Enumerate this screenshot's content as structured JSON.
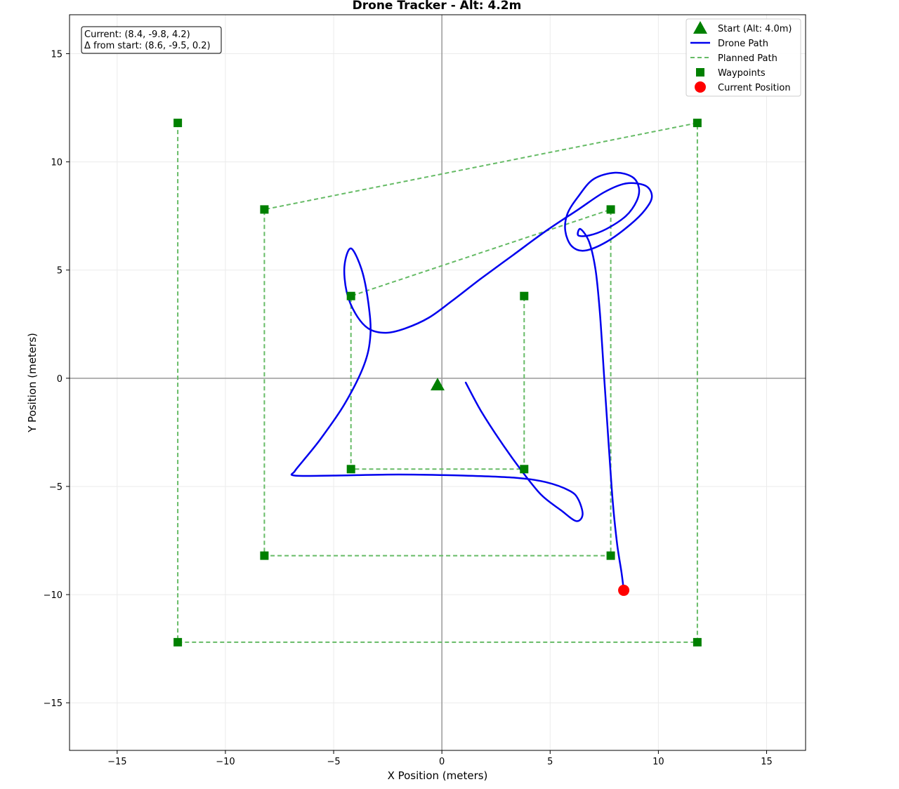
{
  "chart_data": {
    "type": "line",
    "title": "Drone Tracker - Alt: 4.2m",
    "xlabel": "X Position (meters)",
    "ylabel": "Y Position (meters)",
    "xlim": [
      -17.2,
      16.8
    ],
    "ylim": [
      -17.2,
      16.8
    ],
    "xticks": [
      -15,
      -10,
      -5,
      0,
      5,
      10,
      15
    ],
    "yticks": [
      -15,
      -10,
      -5,
      0,
      5,
      10,
      15
    ],
    "xtick_labels": [
      "−15",
      "−10",
      "−5",
      "0",
      "5",
      "10",
      "15"
    ],
    "ytick_labels": [
      "−15",
      "−10",
      "−5",
      "0",
      "5",
      "10",
      "15"
    ],
    "grid": true,
    "legend_position": "top-right",
    "info_box": {
      "current": "Current: (8.4, -9.8, 4.2)",
      "delta": "Δ from start: (8.6, -9.5, 0.2)"
    },
    "series": [
      {
        "name": "Start (Alt: 4.0m)",
        "kind": "marker",
        "marker": "triangle",
        "color": "#008000",
        "points": [
          [
            -0.2,
            -0.3
          ]
        ]
      },
      {
        "name": "Drone Path",
        "kind": "line",
        "color": "#0000ee",
        "x": [
          1.1,
          1.8,
          2.7,
          3.7,
          4.6,
          5.5,
          6.2,
          6.5,
          6.3,
          5.9,
          4.8,
          3.4,
          1.0,
          -2.0,
          -5.0,
          -6.8,
          -6.8,
          -6.4,
          -5.6,
          -4.5,
          -3.6,
          -3.3,
          -3.4,
          -3.7,
          -4.2,
          -4.5,
          -4.4,
          -4.0,
          -3.4,
          -2.6,
          -1.7,
          -0.6,
          0.5,
          1.8,
          3.3,
          4.8,
          6.3,
          7.5,
          8.5,
          9.4,
          9.7,
          9.4,
          8.7,
          7.6,
          6.6,
          6.0,
          5.7,
          5.8,
          6.3,
          7.0,
          8.0,
          8.8,
          9.1,
          9.0,
          8.5,
          7.6,
          6.8,
          6.3,
          6.4,
          6.8,
          7.1,
          7.3,
          7.5,
          7.7,
          7.9,
          8.1,
          8.3,
          8.4
        ],
        "y": [
          -0.2,
          -1.5,
          -2.9,
          -4.3,
          -5.4,
          -6.1,
          -6.6,
          -6.3,
          -5.6,
          -5.2,
          -4.8,
          -4.6,
          -4.5,
          -4.45,
          -4.5,
          -4.5,
          -4.3,
          -3.8,
          -2.8,
          -1.2,
          0.6,
          2.0,
          3.5,
          5.0,
          6.0,
          5.2,
          4.0,
          3.0,
          2.3,
          2.1,
          2.3,
          2.8,
          3.6,
          4.6,
          5.7,
          6.8,
          7.8,
          8.6,
          9.0,
          8.9,
          8.4,
          7.8,
          7.1,
          6.3,
          5.9,
          6.1,
          6.8,
          7.6,
          8.4,
          9.2,
          9.5,
          9.3,
          8.8,
          8.2,
          7.5,
          6.9,
          6.6,
          6.6,
          6.9,
          6.3,
          5.0,
          3.0,
          0.0,
          -3.0,
          -5.8,
          -7.7,
          -9.0,
          -9.8
        ]
      },
      {
        "name": "Planned Path",
        "kind": "dashed-line",
        "color": "#66bb66",
        "segments": [
          [
            [
              -12.2,
              11.8
            ],
            [
              -12.2,
              -12.2
            ],
            [
              11.8,
              -12.2
            ],
            [
              11.8,
              11.8
            ],
            [
              -8.2,
              7.8
            ],
            [
              -8.2,
              -8.2
            ],
            [
              7.8,
              -8.2
            ],
            [
              7.8,
              7.8
            ],
            [
              -4.2,
              3.8
            ],
            [
              -4.2,
              -4.2
            ],
            [
              3.8,
              -4.2
            ],
            [
              3.8,
              3.8
            ]
          ]
        ]
      },
      {
        "name": "Waypoints",
        "kind": "marker",
        "marker": "square",
        "color": "#008000",
        "points": [
          [
            -12.2,
            11.8
          ],
          [
            -12.2,
            -12.2
          ],
          [
            11.8,
            -12.2
          ],
          [
            11.8,
            11.8
          ],
          [
            -8.2,
            7.8
          ],
          [
            -8.2,
            -8.2
          ],
          [
            7.8,
            -8.2
          ],
          [
            7.8,
            7.8
          ],
          [
            -4.2,
            3.8
          ],
          [
            -4.2,
            -4.2
          ],
          [
            3.8,
            -4.2
          ],
          [
            3.8,
            3.8
          ]
        ]
      },
      {
        "name": "Current Position",
        "kind": "marker",
        "marker": "circle",
        "color": "#ff0000",
        "points": [
          [
            8.4,
            -9.8
          ]
        ]
      }
    ]
  }
}
